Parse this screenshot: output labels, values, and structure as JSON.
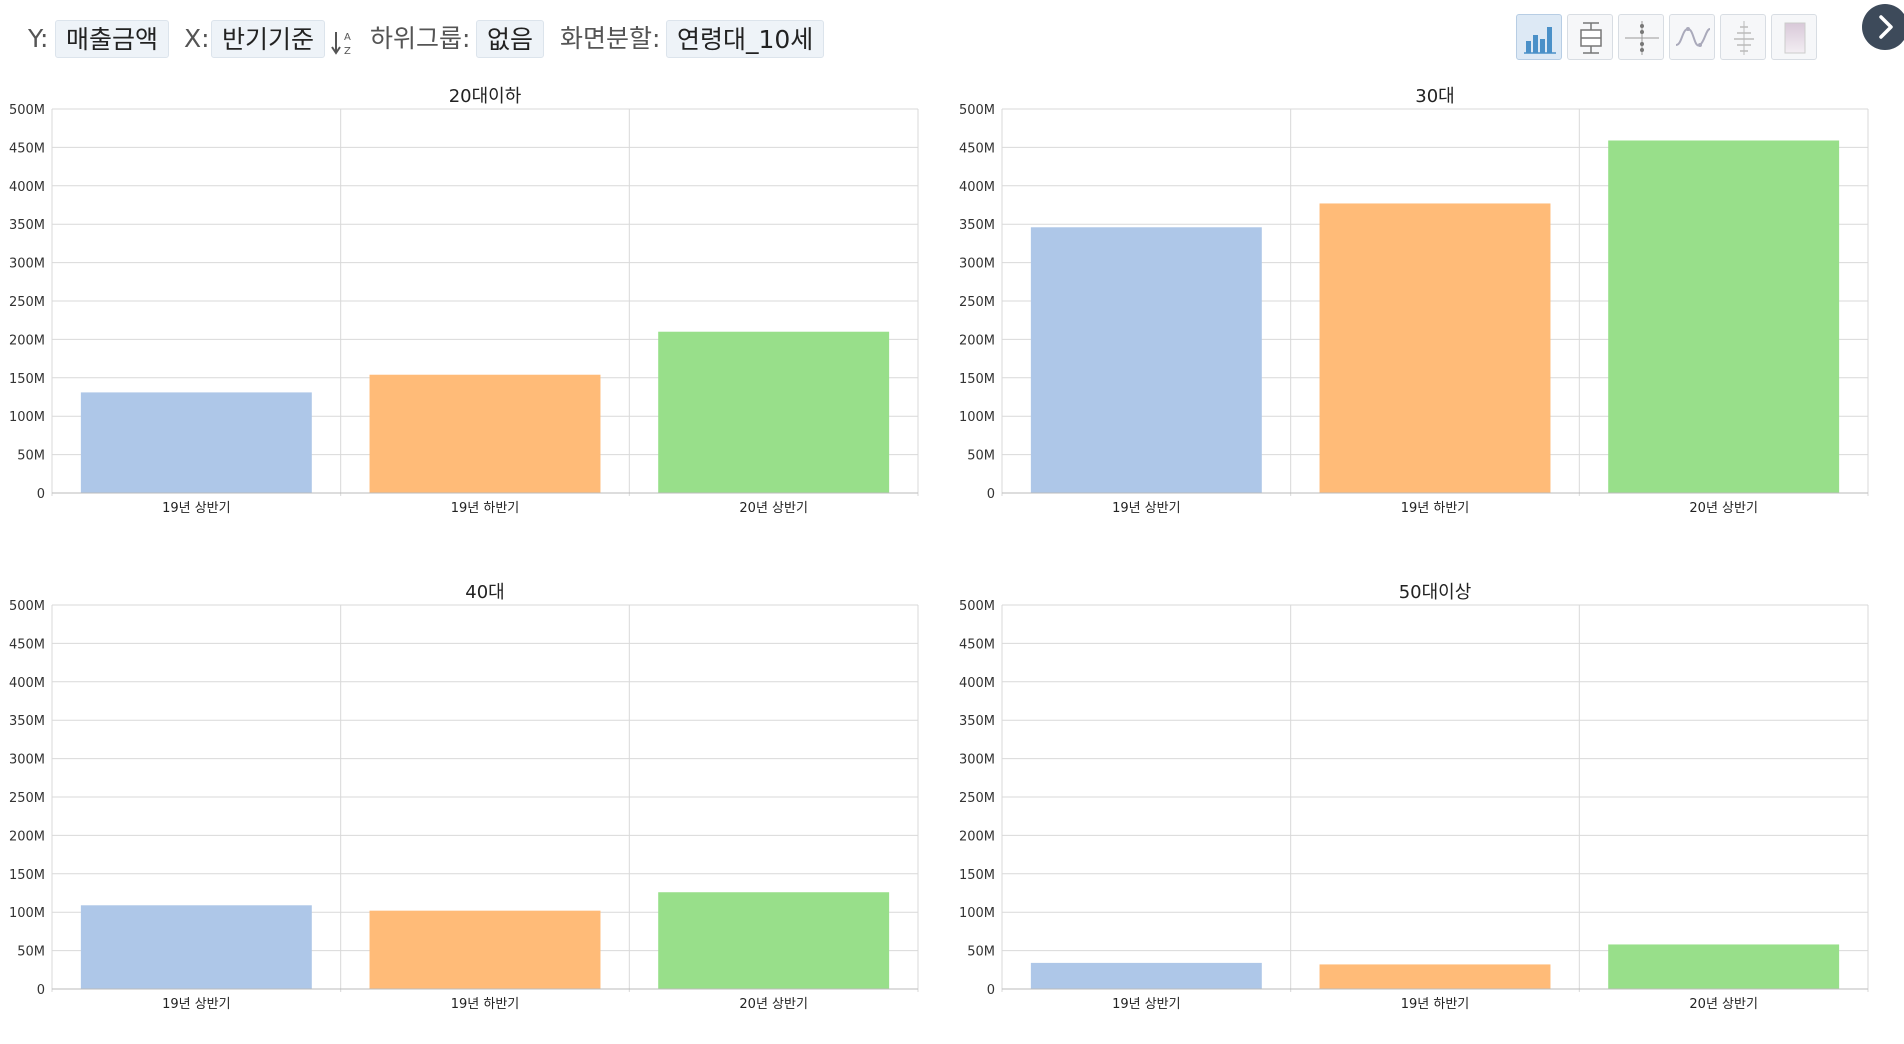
{
  "controls": {
    "y_label": "Y:",
    "y_value": "매출금액",
    "x_label": "X:",
    "x_value": "반기기준",
    "subgroup_label": "하위그룹:",
    "subgroup_value": "없음",
    "split_label": "화면분할:",
    "split_value": "연령대_10세"
  },
  "chart_type_buttons": [
    {
      "icon": "bar-chart-icon",
      "active": true
    },
    {
      "icon": "boxplot-icon",
      "active": false
    },
    {
      "icon": "scatter-icon",
      "active": false
    },
    {
      "icon": "line-chart-icon",
      "active": false
    },
    {
      "icon": "histogram-icon",
      "active": false
    },
    {
      "icon": "heatmap-icon",
      "active": false
    }
  ],
  "colors": {
    "series": [
      "#aec7e8",
      "#ffbb78",
      "#98df8a"
    ],
    "grid": "#d9d9d9",
    "accent": "#3d4a5a"
  },
  "chart_data": [
    {
      "type": "bar",
      "title": "20대이하",
      "categories": [
        "19년 상반기",
        "19년 하반기",
        "20년 상반기"
      ],
      "values": [
        131000000,
        154000000,
        210000000
      ],
      "ylim": [
        0,
        500000000
      ],
      "yticks": [
        "0",
        "50M",
        "100M",
        "150M",
        "200M",
        "250M",
        "300M",
        "350M",
        "400M",
        "450M",
        "500M"
      ],
      "grid": true
    },
    {
      "type": "bar",
      "title": "30대",
      "categories": [
        "19년 상반기",
        "19년 하반기",
        "20년 상반기"
      ],
      "values": [
        346000000,
        377000000,
        459000000
      ],
      "ylim": [
        0,
        500000000
      ],
      "yticks": [
        "0",
        "50M",
        "100M",
        "150M",
        "200M",
        "250M",
        "300M",
        "350M",
        "400M",
        "450M",
        "500M"
      ],
      "grid": true
    },
    {
      "type": "bar",
      "title": "40대",
      "categories": [
        "19년 상반기",
        "19년 하반기",
        "20년 상반기"
      ],
      "values": [
        109000000,
        102000000,
        126000000
      ],
      "ylim": [
        0,
        500000000
      ],
      "yticks": [
        "0",
        "50M",
        "100M",
        "150M",
        "200M",
        "250M",
        "300M",
        "350M",
        "400M",
        "450M",
        "500M"
      ],
      "grid": true
    },
    {
      "type": "bar",
      "title": "50대이상",
      "categories": [
        "19년 상반기",
        "19년 하반기",
        "20년 상반기"
      ],
      "values": [
        34000000,
        32000000,
        58000000
      ],
      "ylim": [
        0,
        500000000
      ],
      "yticks": [
        "0",
        "50M",
        "100M",
        "150M",
        "200M",
        "250M",
        "300M",
        "350M",
        "400M",
        "450M",
        "500M"
      ],
      "grid": true
    }
  ]
}
